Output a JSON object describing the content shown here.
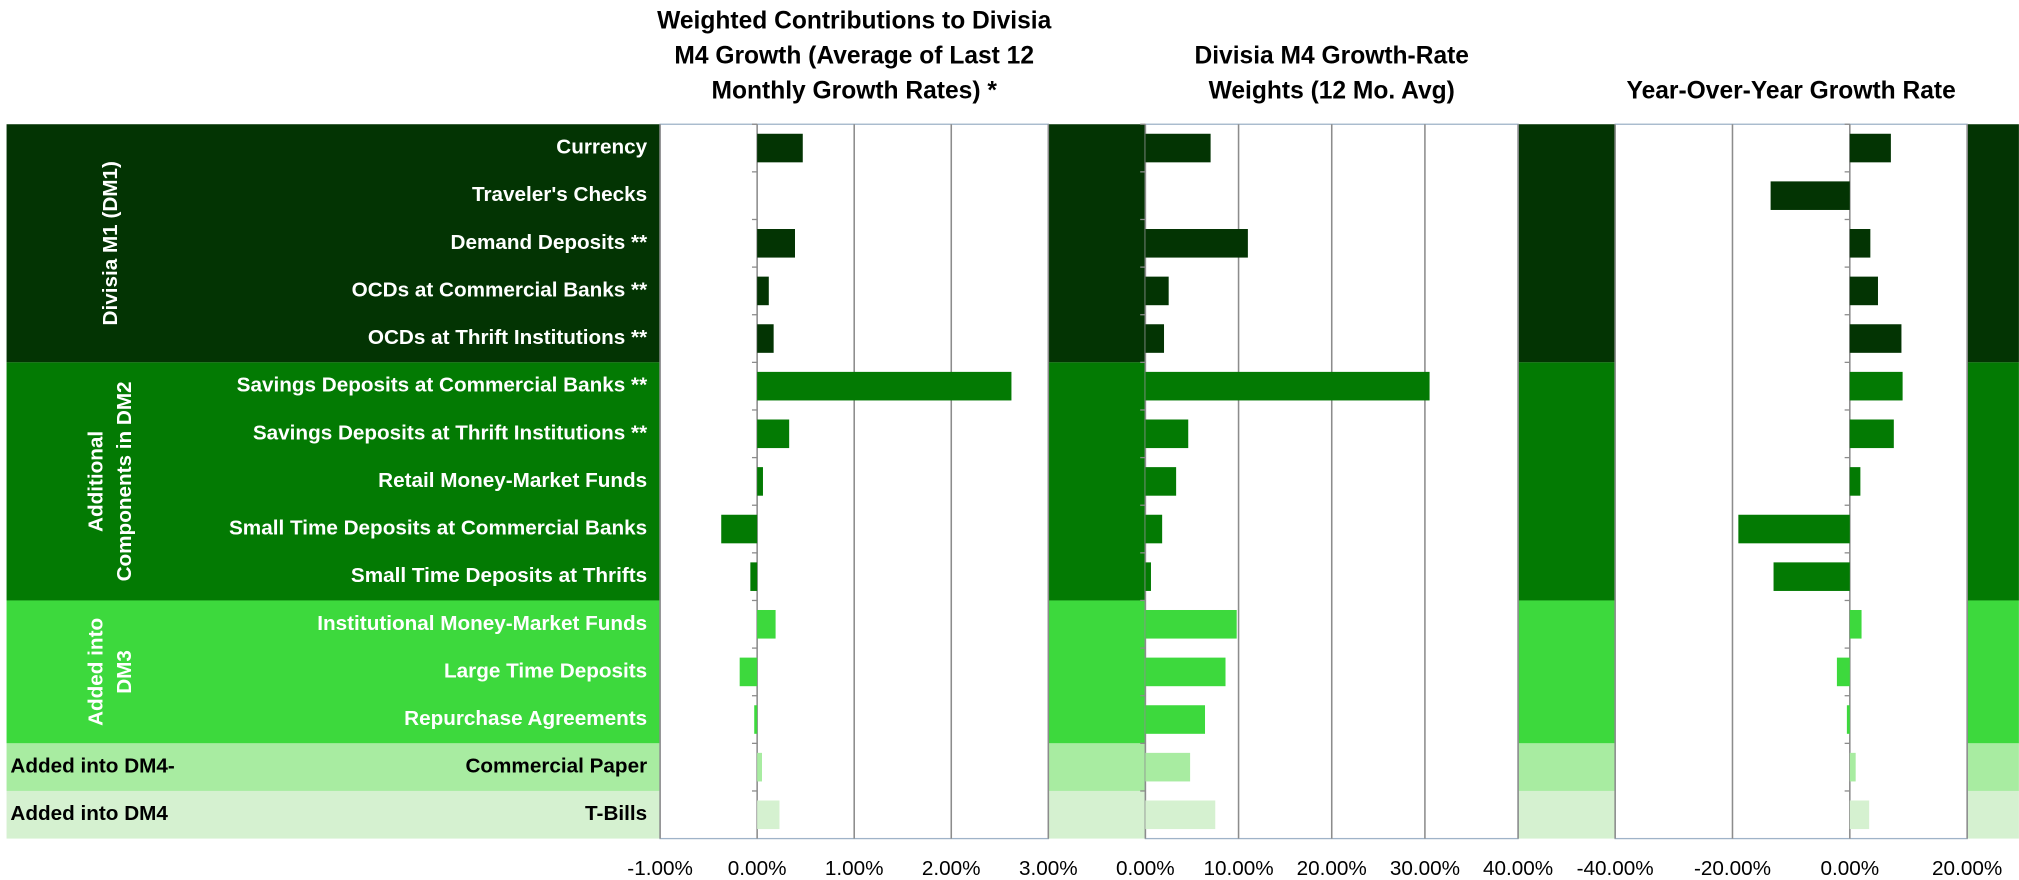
{
  "groups": [
    {
      "label_lines": [
        "Divisia M1 (DM1)"
      ],
      "label_orientation": "vertical",
      "color": "#033403",
      "categories": [
        "Currency",
        "Traveler's Checks",
        "Demand Deposits **",
        "OCDs at Commercial Banks **",
        "OCDs at Thrift Institutions **"
      ]
    },
    {
      "label_lines": [
        "Additional",
        "Components in DM2"
      ],
      "label_orientation": "vertical",
      "color": "#037a03",
      "categories": [
        "Savings Deposits at Commercial Banks **",
        "Savings Deposits at Thrift Institutions **",
        "Retail Money-Market Funds",
        "Small Time Deposits at Commercial Banks",
        "Small Time Deposits at Thrifts"
      ]
    },
    {
      "label_lines": [
        "Added into",
        "DM3"
      ],
      "label_orientation": "vertical",
      "color": "#3dd93d",
      "categories": [
        "Institutional Money-Market Funds",
        "Large Time Deposits",
        "Repurchase Agreements"
      ]
    },
    {
      "label_lines": [
        "Added into DM4-"
      ],
      "label_orientation": "horizontal",
      "color": "#a8eca1",
      "categories": [
        "Commercial Paper"
      ]
    },
    {
      "label_lines": [
        "Added into DM4"
      ],
      "label_orientation": "horizontal",
      "color": "#d5f1d0",
      "categories": [
        "T-Bills"
      ]
    }
  ],
  "chart_data": [
    {
      "type": "bar",
      "orientation": "horizontal",
      "title_lines": [
        "Weighted Contributions to Divisia",
        "M4 Growth (Average of Last 12",
        "Monthly Growth Rates) *"
      ],
      "xlim": [
        -1,
        3
      ],
      "xticks": [
        {
          "value": -1,
          "label": "-1.00%"
        },
        {
          "value": 0,
          "label": "0.00%"
        },
        {
          "value": 1,
          "label": "1.00%"
        },
        {
          "value": 2,
          "label": "2.00%"
        },
        {
          "value": 3,
          "label": "3.00%"
        }
      ],
      "grid": true,
      "values": [
        0.47,
        0.0,
        0.39,
        0.12,
        0.17,
        2.62,
        0.33,
        0.06,
        -0.37,
        -0.07,
        0.19,
        -0.18,
        -0.03,
        0.05,
        0.23
      ]
    },
    {
      "type": "bar",
      "orientation": "horizontal",
      "title_lines": [
        "Divisia M4 Growth-Rate",
        "Weights (12 Mo. Avg)"
      ],
      "xlim": [
        0,
        40
      ],
      "xticks": [
        {
          "value": 0,
          "label": "0.00%"
        },
        {
          "value": 10,
          "label": "10.00%"
        },
        {
          "value": 20,
          "label": "20.00%"
        },
        {
          "value": 30,
          "label": "30.00%"
        },
        {
          "value": 40,
          "label": "40.00%"
        }
      ],
      "grid": true,
      "values": [
        7.0,
        0.0,
        11.0,
        2.5,
        2.0,
        30.5,
        4.6,
        3.3,
        1.8,
        0.6,
        9.8,
        8.6,
        6.4,
        4.8,
        7.5
      ]
    },
    {
      "type": "bar",
      "orientation": "horizontal",
      "title_lines": [
        "Year-Over-Year Growth Rate"
      ],
      "xlim": [
        -40,
        20
      ],
      "xticks": [
        {
          "value": -40,
          "label": "-40.00%"
        },
        {
          "value": -20,
          "label": "-20.00%"
        },
        {
          "value": 0,
          "label": "0.00%"
        },
        {
          "value": 20,
          "label": "20.00%"
        }
      ],
      "grid": true,
      "values": [
        7.0,
        -13.5,
        3.5,
        4.8,
        8.8,
        9.0,
        7.5,
        1.8,
        -19.0,
        -13.0,
        2.0,
        -2.2,
        -0.5,
        1.0,
        3.3
      ]
    }
  ]
}
